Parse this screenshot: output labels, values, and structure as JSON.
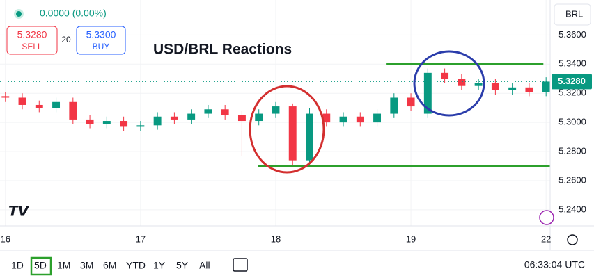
{
  "header": {
    "change": "0.0000 (0.00%)",
    "sell_price": "5.3280",
    "sell_label": "SELL",
    "spread": "20",
    "buy_price": "5.3300",
    "buy_label": "BUY",
    "currency": "BRL"
  },
  "chart_data": {
    "type": "candlestick",
    "title": "USD/BRL Reactions",
    "x": [
      0,
      0.125,
      0.25,
      0.375,
      0.5,
      0.625,
      0.75,
      0.875,
      1,
      1.125,
      1.25,
      1.375,
      1.5,
      1.625,
      1.75,
      1.875,
      2,
      2.125,
      2.25,
      2.375,
      2.5,
      2.625,
      2.75,
      2.875,
      3,
      3.125,
      3.25,
      3.375,
      3.5,
      3.625,
      3.75,
      3.875,
      4
    ],
    "open": [
      5.318,
      5.317,
      5.312,
      5.31,
      5.314,
      5.302,
      5.299,
      5.301,
      5.297,
      5.298,
      5.304,
      5.302,
      5.306,
      5.309,
      5.305,
      5.301,
      5.306,
      5.311,
      5.274,
      5.306,
      5.3,
      5.304,
      5.3,
      5.306,
      5.317,
      5.306,
      5.334,
      5.33,
      5.325,
      5.327,
      5.322,
      5.324,
      5.321
    ],
    "high": [
      5.321,
      5.32,
      5.315,
      5.317,
      5.317,
      5.305,
      5.304,
      5.304,
      5.301,
      5.307,
      5.307,
      5.309,
      5.312,
      5.312,
      5.308,
      5.309,
      5.314,
      5.313,
      5.31,
      5.309,
      5.307,
      5.307,
      5.309,
      5.32,
      5.32,
      5.337,
      5.337,
      5.333,
      5.33,
      5.33,
      5.327,
      5.327,
      5.331
    ],
    "low": [
      5.314,
      5.309,
      5.307,
      5.307,
      5.299,
      5.296,
      5.296,
      5.294,
      5.294,
      5.295,
      5.299,
      5.299,
      5.303,
      5.302,
      5.277,
      5.298,
      5.303,
      5.27,
      5.271,
      5.297,
      5.297,
      5.297,
      5.297,
      5.303,
      5.308,
      5.303,
      5.327,
      5.322,
      5.322,
      5.319,
      5.319,
      5.318,
      5.318
    ],
    "close": [
      5.317,
      5.312,
      5.31,
      5.314,
      5.302,
      5.299,
      5.301,
      5.297,
      5.298,
      5.304,
      5.302,
      5.306,
      5.309,
      5.305,
      5.301,
      5.306,
      5.311,
      5.274,
      5.306,
      5.3,
      5.304,
      5.3,
      5.306,
      5.317,
      5.311,
      5.334,
      5.33,
      5.325,
      5.327,
      5.322,
      5.324,
      5.321,
      5.328
    ],
    "up_color": "#089981",
    "down_color": "#f23645",
    "xlim": [
      -0.04,
      4.03
    ],
    "xticks": [
      {
        "value": 0,
        "label": "16"
      },
      {
        "value": 1,
        "label": "17"
      },
      {
        "value": 2,
        "label": "18"
      },
      {
        "value": 3,
        "label": "19"
      },
      {
        "value": 4,
        "label": "22"
      }
    ],
    "ylim": [
      5.229,
      5.384
    ],
    "yticks": [
      {
        "value": 5.36,
        "label": "5.3600"
      },
      {
        "value": 5.34,
        "label": "5.3400"
      },
      {
        "value": 5.32,
        "label": "5.3200"
      },
      {
        "value": 5.3,
        "label": "5.3000"
      },
      {
        "value": 5.28,
        "label": "5.2800"
      },
      {
        "value": 5.26,
        "label": "5.2600"
      },
      {
        "value": 5.24,
        "label": "5.2400"
      }
    ],
    "last_price": {
      "value": 5.328,
      "label": "5.3280"
    },
    "levels": [
      {
        "value": 5.34,
        "x": [
          2.82,
          3.98
        ],
        "color": "#2ca02c"
      },
      {
        "value": 5.27,
        "x": [
          1.87,
          4.03
        ],
        "color": "#2ca02c"
      }
    ]
  },
  "toolbar": {
    "ranges": [
      "1D",
      "5D",
      "1M",
      "3M",
      "6M",
      "YTD",
      "1Y",
      "5Y",
      "All"
    ],
    "selected": 1,
    "time": "06:33:04 UTC"
  }
}
